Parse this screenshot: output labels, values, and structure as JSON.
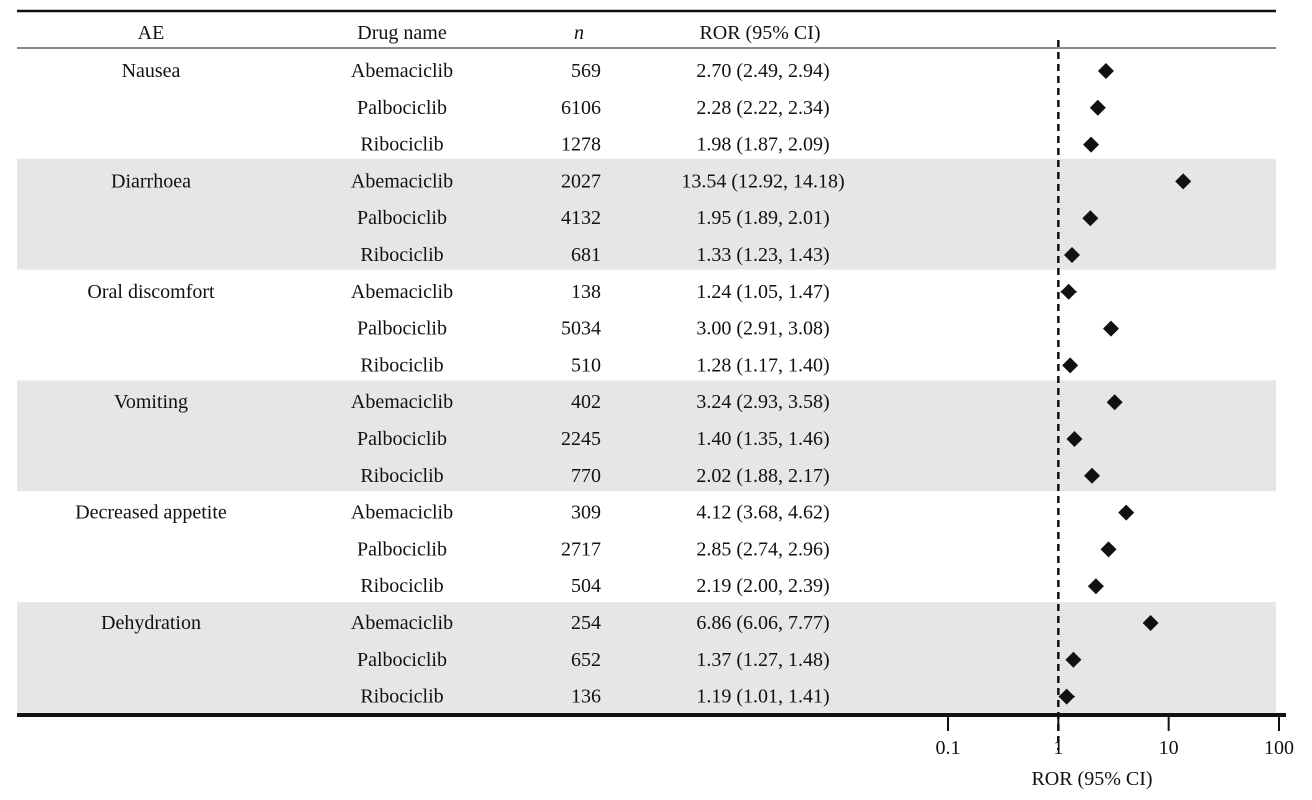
{
  "headers": {
    "ae": "AE",
    "drug": "Drug name",
    "n": "n",
    "ror": "ROR (95% CI)"
  },
  "chart_data": {
    "type": "forest",
    "x_scale": "log",
    "xlim": [
      0.1,
      100
    ],
    "reference_line": 1,
    "xlabel": "ROR (95% CI)",
    "ticks": [
      "0.1",
      "1",
      "10",
      "100"
    ],
    "tick_values": [
      0.1,
      1,
      10,
      100
    ],
    "groups": [
      {
        "ae": "Nausea",
        "shaded": false,
        "rows": [
          {
            "drug": "Abemaciclib",
            "n": "569",
            "ror_text": "2.70 (2.49, 2.94)",
            "ror": 2.7,
            "lower": 2.49,
            "upper": 2.94
          },
          {
            "drug": "Palbociclib",
            "n": "6106",
            "ror_text": "2.28 (2.22, 2.34)",
            "ror": 2.28,
            "lower": 2.22,
            "upper": 2.34
          },
          {
            "drug": "Ribociclib",
            "n": "1278",
            "ror_text": "1.98 (1.87, 2.09)",
            "ror": 1.98,
            "lower": 1.87,
            "upper": 2.09
          }
        ]
      },
      {
        "ae": "Diarrhoea",
        "shaded": true,
        "rows": [
          {
            "drug": "Abemaciclib",
            "n": "2027",
            "ror_text": "13.54 (12.92, 14.18)",
            "ror": 13.54,
            "lower": 12.92,
            "upper": 14.18
          },
          {
            "drug": "Palbociclib",
            "n": "4132",
            "ror_text": "1.95 (1.89, 2.01)",
            "ror": 1.95,
            "lower": 1.89,
            "upper": 2.01
          },
          {
            "drug": "Ribociclib",
            "n": "681",
            "ror_text": "1.33 (1.23, 1.43)",
            "ror": 1.33,
            "lower": 1.23,
            "upper": 1.43
          }
        ]
      },
      {
        "ae": "Oral discomfort",
        "shaded": false,
        "rows": [
          {
            "drug": "Abemaciclib",
            "n": "138",
            "ror_text": "1.24 (1.05, 1.47)",
            "ror": 1.24,
            "lower": 1.05,
            "upper": 1.47
          },
          {
            "drug": "Palbociclib",
            "n": "5034",
            "ror_text": "3.00 (2.91, 3.08)",
            "ror": 3.0,
            "lower": 2.91,
            "upper": 3.08
          },
          {
            "drug": "Ribociclib",
            "n": "510",
            "ror_text": "1.28 (1.17, 1.40)",
            "ror": 1.28,
            "lower": 1.17,
            "upper": 1.4
          }
        ]
      },
      {
        "ae": "Vomiting",
        "shaded": true,
        "rows": [
          {
            "drug": "Abemaciclib",
            "n": "402",
            "ror_text": "3.24 (2.93, 3.58)",
            "ror": 3.24,
            "lower": 2.93,
            "upper": 3.58
          },
          {
            "drug": "Palbociclib",
            "n": "2245",
            "ror_text": "1.40 (1.35, 1.46)",
            "ror": 1.4,
            "lower": 1.35,
            "upper": 1.46
          },
          {
            "drug": "Ribociclib",
            "n": "770",
            "ror_text": "2.02 (1.88, 2.17)",
            "ror": 2.02,
            "lower": 1.88,
            "upper": 2.17
          }
        ]
      },
      {
        "ae": "Decreased appetite",
        "shaded": false,
        "rows": [
          {
            "drug": "Abemaciclib",
            "n": "309",
            "ror_text": "4.12 (3.68, 4.62)",
            "ror": 4.12,
            "lower": 3.68,
            "upper": 4.62
          },
          {
            "drug": "Palbociclib",
            "n": "2717",
            "ror_text": "2.85 (2.74, 2.96)",
            "ror": 2.85,
            "lower": 2.74,
            "upper": 2.96
          },
          {
            "drug": "Ribociclib",
            "n": "504",
            "ror_text": "2.19 (2.00, 2.39)",
            "ror": 2.19,
            "lower": 2.0,
            "upper": 2.39
          }
        ]
      },
      {
        "ae": "Dehydration",
        "shaded": true,
        "rows": [
          {
            "drug": "Abemaciclib",
            "n": "254",
            "ror_text": "6.86 (6.06, 7.77)",
            "ror": 6.86,
            "lower": 6.06,
            "upper": 7.77
          },
          {
            "drug": "Palbociclib",
            "n": "652",
            "ror_text": "1.37 (1.27, 1.48)",
            "ror": 1.37,
            "lower": 1.27,
            "upper": 1.48
          },
          {
            "drug": "Ribociclib",
            "n": "136",
            "ror_text": "1.19 (1.01, 1.41)",
            "ror": 1.19,
            "lower": 1.01,
            "upper": 1.41
          }
        ]
      }
    ]
  }
}
